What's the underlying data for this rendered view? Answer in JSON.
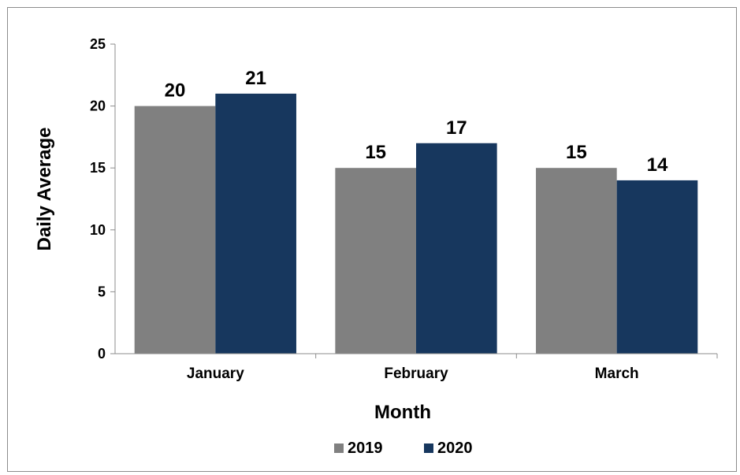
{
  "chart_data": {
    "type": "bar",
    "categories": [
      "January",
      "February",
      "March"
    ],
    "series": [
      {
        "name": "2019",
        "values": [
          20,
          15,
          15
        ],
        "color": "#808080"
      },
      {
        "name": "2020",
        "values": [
          21,
          17,
          14
        ],
        "color": "#17375e"
      }
    ],
    "title": "",
    "xlabel": "Month",
    "ylabel": "Daily Average",
    "ylim": [
      0,
      25
    ],
    "yticks": [
      "0",
      "5",
      "10",
      "15",
      "20",
      "25"
    ],
    "grid": false,
    "legend": "bottom-center",
    "data_labels": true
  }
}
